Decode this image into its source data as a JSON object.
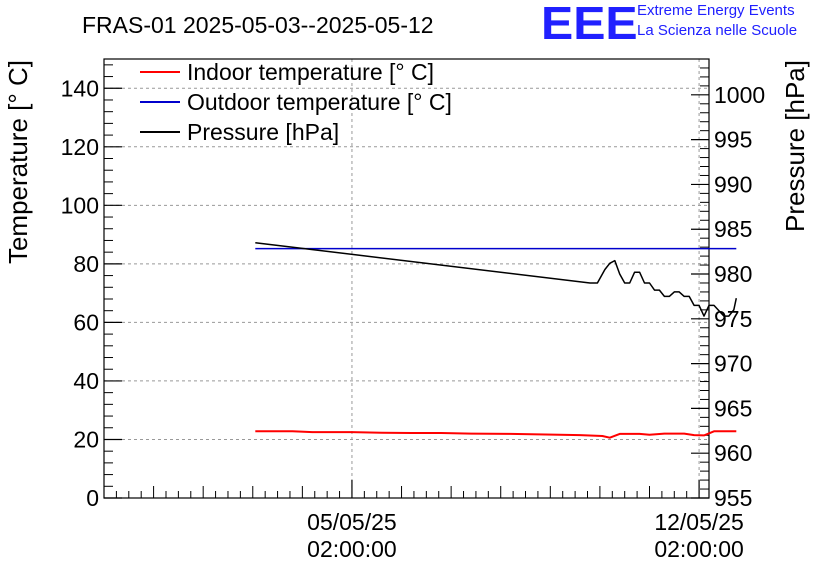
{
  "logo": {
    "mark": "EEE",
    "line1": "Extreme Energy Events",
    "line2": "La Scienza nelle Scuole",
    "color": "#2020ff"
  },
  "chart_data": {
    "type": "line",
    "title": "FRAS-01 2025-05-03--2025-05-12",
    "ylabel": "Temperature [° C]",
    "y2label": "Pressure [hPa]",
    "ylim": [
      0,
      150
    ],
    "y2lim": [
      955,
      1004
    ],
    "yticks": [
      0,
      20,
      40,
      60,
      80,
      100,
      120,
      140
    ],
    "y2ticks": [
      955,
      960,
      965,
      970,
      975,
      980,
      985,
      990,
      995,
      1000
    ],
    "xlim": [
      0,
      12.2
    ],
    "xticks": [
      {
        "x": 5,
        "label1": "05/05/25",
        "label2": "02:00:00"
      },
      {
        "x": 12,
        "label1": "12/05/25",
        "label2": "02:00:00"
      }
    ],
    "grid": true,
    "legend_position": "top-left",
    "series": [
      {
        "name": "Indoor temperature [° C]",
        "axis": "left",
        "color": "#ff0000",
        "x": [
          3.05,
          3.8,
          4.2,
          5.0,
          5.6,
          6.2,
          6.8,
          7.4,
          8.2,
          8.9,
          9.6,
          10.05,
          10.2,
          10.4,
          10.8,
          11.0,
          11.3,
          11.7,
          11.9,
          12.1,
          12.3,
          12.75
        ],
        "values": [
          22.8,
          22.8,
          22.5,
          22.5,
          22.3,
          22.2,
          22.2,
          22.0,
          21.9,
          21.7,
          21.5,
          21.2,
          20.6,
          21.9,
          21.9,
          21.6,
          22.0,
          22.0,
          21.5,
          21.4,
          22.8,
          22.8
        ]
      },
      {
        "name": "Outdoor temperature [° C]",
        "axis": "left",
        "color": "#0000cc",
        "x": [
          3.05,
          12.75
        ],
        "values": [
          85.2,
          85.2
        ]
      },
      {
        "name": "Pressure [hPa]",
        "axis": "right",
        "color": "#000000",
        "x": [
          3.05,
          9.8,
          9.95,
          10.1,
          10.2,
          10.3,
          10.4,
          10.5,
          10.6,
          10.7,
          10.8,
          10.9,
          11.0,
          11.1,
          11.2,
          11.3,
          11.4,
          11.5,
          11.6,
          11.7,
          11.8,
          11.9,
          12.0,
          12.1,
          12.2,
          12.3,
          12.5,
          12.6,
          12.7,
          12.75
        ],
        "values": [
          983.5,
          979.0,
          979.0,
          980.5,
          981.2,
          981.5,
          980.0,
          979.0,
          979.0,
          980.2,
          980.2,
          979.0,
          979.0,
          978.2,
          978.2,
          977.5,
          977.5,
          978.0,
          978.0,
          977.5,
          977.5,
          976.5,
          976.5,
          975.3,
          976.5,
          976.5,
          975.3,
          975.3,
          976.0,
          977.3
        ]
      }
    ]
  }
}
